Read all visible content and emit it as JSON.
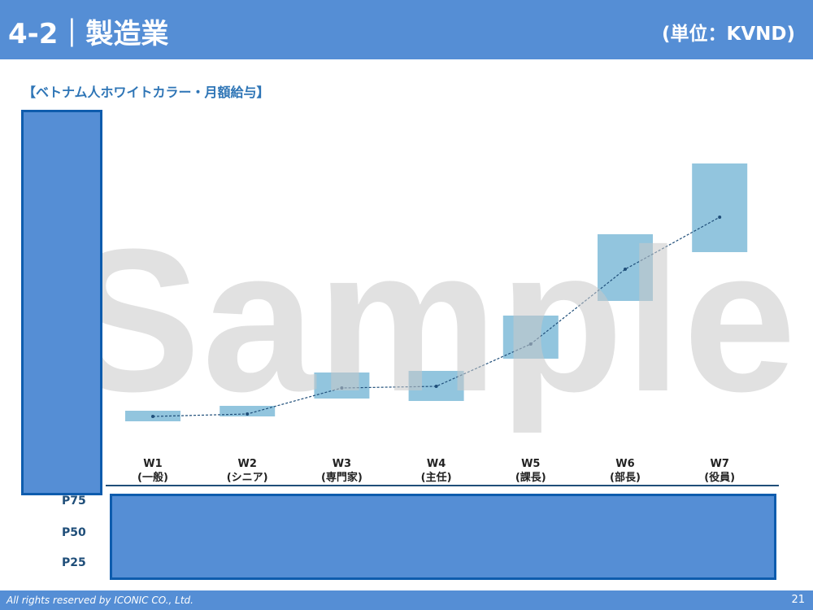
{
  "header": {
    "title": "4-2｜製造業",
    "unit": "(単位：KVND)"
  },
  "subtitle": "【ベトナム人ホワイトカラー・月額給与】",
  "watermark": "Sample",
  "rows": [
    "P75",
    "P50",
    "P25"
  ],
  "footer": {
    "copyright": "All rights reserved by ICONIC CO., Ltd.",
    "page": "21"
  },
  "colors": {
    "header": "#558ed5",
    "bar": "#92c5de",
    "line": "#1f4e79",
    "cover": "#558ed5"
  },
  "chart_data": {
    "type": "bar",
    "subtype": "floating-range-with-median-line",
    "categories": [
      {
        "code": "W1",
        "name": "(一般)"
      },
      {
        "code": "W2",
        "name": "(シニア)"
      },
      {
        "code": "W3",
        "name": "(専門家)"
      },
      {
        "code": "W4",
        "name": "(主任)"
      },
      {
        "code": "W5",
        "name": "(課長)"
      },
      {
        "code": "W6",
        "name": "(部長)"
      },
      {
        "code": "W7",
        "name": "(役員)"
      }
    ],
    "series": [
      {
        "name": "P75",
        "values": [
          9.5,
          10.1,
          14.2,
          14.4,
          21.2,
          31.2,
          39.9
        ]
      },
      {
        "name": "P50",
        "values": [
          8.8,
          9.1,
          12.3,
          12.5,
          17.7,
          26.9,
          33.3
        ]
      },
      {
        "name": "P25",
        "values": [
          8.2,
          8.8,
          11.0,
          10.7,
          15.9,
          23.0,
          29.0
        ]
      }
    ],
    "ylim": [
      0,
      47
    ],
    "grid": false,
    "legend": "none"
  }
}
